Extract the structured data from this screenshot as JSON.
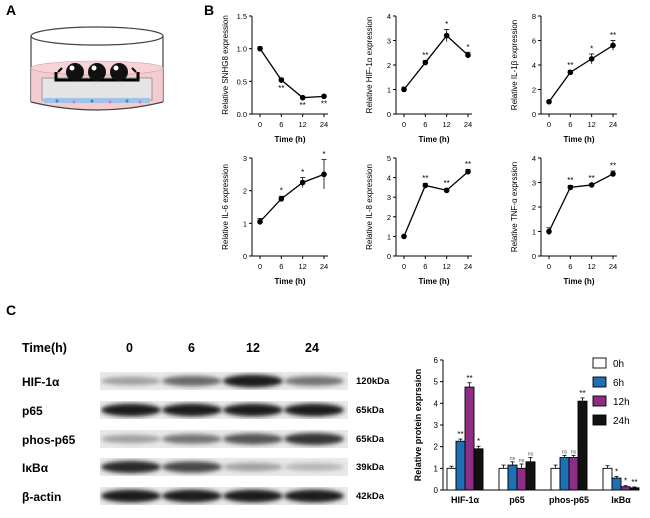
{
  "panels": {
    "a": "A",
    "b": "B",
    "c": "C"
  },
  "line_charts": [
    {
      "id": "snhg8",
      "ylabel": "Relative SNHG8 expression",
      "xlabel": "Time (h)",
      "x": [
        "0",
        "6",
        "12",
        "24"
      ],
      "y": [
        1.0,
        0.52,
        0.25,
        0.27
      ],
      "err": [
        0.03,
        0.03,
        0.02,
        0.02
      ],
      "sig": [
        "",
        "**",
        "**",
        "**"
      ],
      "sig_pos": [
        "",
        "below",
        "below",
        "below"
      ],
      "ylim": [
        0,
        1.5
      ],
      "yticks": [
        "0.0",
        "0.5",
        "1.0",
        "1.5"
      ]
    },
    {
      "id": "hif1a",
      "ylabel": "Relative HIF-1α expression",
      "xlabel": "Time (h)",
      "x": [
        "0",
        "6",
        "12",
        "24"
      ],
      "y": [
        1.0,
        2.1,
        3.2,
        2.4
      ],
      "err": [
        0.1,
        0.08,
        0.25,
        0.12
      ],
      "sig": [
        "",
        "**",
        "*",
        "*"
      ],
      "sig_pos": [
        "",
        "above",
        "above",
        "above"
      ],
      "ylim": [
        0,
        4
      ],
      "yticks": [
        "0",
        "1",
        "2",
        "3",
        "4"
      ]
    },
    {
      "id": "il1b",
      "ylabel": "Relative IL-1β expression",
      "xlabel": "Time (h)",
      "x": [
        "0",
        "6",
        "12",
        "24"
      ],
      "y": [
        1.0,
        3.4,
        4.5,
        5.6
      ],
      "err": [
        0.08,
        0.15,
        0.4,
        0.4
      ],
      "sig": [
        "",
        "**",
        "*",
        "**"
      ],
      "sig_pos": [
        "",
        "above",
        "above",
        "above"
      ],
      "ylim": [
        0,
        8
      ],
      "yticks": [
        "0",
        "2",
        "4",
        "6",
        "8"
      ]
    },
    {
      "id": "il6",
      "ylabel": "Relative IL-6 expression",
      "xlabel": "Time (h)",
      "x": [
        "0",
        "6",
        "12",
        "24"
      ],
      "y": [
        1.05,
        1.75,
        2.25,
        2.5
      ],
      "err": [
        0.1,
        0.08,
        0.15,
        0.45
      ],
      "sig": [
        "",
        "*",
        "*",
        "*"
      ],
      "sig_pos": [
        "",
        "above",
        "above",
        "above"
      ],
      "ylim": [
        0,
        3
      ],
      "yticks": [
        "0",
        "1",
        "2",
        "3"
      ]
    },
    {
      "id": "il8",
      "ylabel": "Relative IL-8 expression",
      "xlabel": "Time (h)",
      "x": [
        "0",
        "6",
        "12",
        "24"
      ],
      "y": [
        1.0,
        3.6,
        3.35,
        4.3
      ],
      "err": [
        0.04,
        0.1,
        0.1,
        0.12
      ],
      "sig": [
        "",
        "**",
        "**",
        "**"
      ],
      "sig_pos": [
        "",
        "above",
        "above",
        "above"
      ],
      "ylim": [
        0,
        5
      ],
      "yticks": [
        "0",
        "1",
        "2",
        "3",
        "4",
        "5"
      ]
    },
    {
      "id": "tnfa",
      "ylabel": "Relative TNF-α exprssion",
      "xlabel": "Time (h)",
      "x": [
        "0",
        "6",
        "12",
        "24"
      ],
      "y": [
        1.0,
        2.8,
        2.9,
        3.35
      ],
      "err": [
        0.15,
        0.08,
        0.06,
        0.12
      ],
      "sig": [
        "",
        "**",
        "**",
        "**"
      ],
      "sig_pos": [
        "",
        "above",
        "above",
        "above"
      ],
      "ylim": [
        0,
        4
      ],
      "yticks": [
        "0",
        "1",
        "2",
        "3",
        "4"
      ]
    }
  ],
  "western_blot": {
    "time_header": "Time(h)",
    "times": [
      "0",
      "6",
      "12",
      "24"
    ],
    "rows": [
      {
        "label": "HIF-1α",
        "kda": "120kDa",
        "intensity": [
          0.35,
          0.6,
          0.95,
          0.55
        ]
      },
      {
        "label": "p65",
        "kda": "65kDa",
        "intensity": [
          0.95,
          0.95,
          0.95,
          0.95
        ]
      },
      {
        "label": "phos-p65",
        "kda": "65kDa",
        "intensity": [
          0.35,
          0.55,
          0.7,
          0.85
        ]
      },
      {
        "label": "IκBα",
        "kda": "39kDa",
        "intensity": [
          0.9,
          0.75,
          0.35,
          0.25
        ]
      },
      {
        "label": "β-actin",
        "kda": "42kDa",
        "intensity": [
          0.95,
          0.95,
          0.95,
          0.95
        ]
      }
    ]
  },
  "chart_data": {
    "type": "bar",
    "ylabel": "Relative protein exprssion",
    "ylim": [
      0,
      6
    ],
    "yticks": [
      "0",
      "1",
      "2",
      "3",
      "4",
      "5",
      "6"
    ],
    "categories": [
      "HIF-1α",
      "p65",
      "phos-p65",
      "IκBα"
    ],
    "legend_position": "right",
    "series": [
      {
        "name": "0h",
        "color": "#ffffff",
        "values": [
          1.0,
          1.0,
          1.0,
          1.0
        ],
        "err": [
          0.1,
          0.15,
          0.15,
          0.12
        ],
        "sig": [
          "",
          "",
          "",
          ""
        ]
      },
      {
        "name": "6h",
        "color": "#1f6fb5",
        "values": [
          2.25,
          1.15,
          1.5,
          0.55
        ],
        "err": [
          0.1,
          0.15,
          0.1,
          0.08
        ],
        "sig": [
          "**",
          "ns",
          "ns",
          "*"
        ]
      },
      {
        "name": "12h",
        "color": "#8e2c86",
        "values": [
          4.75,
          1.0,
          1.5,
          0.15
        ],
        "err": [
          0.2,
          0.2,
          0.1,
          0.05
        ],
        "sig": [
          "**",
          "ns",
          "ns",
          "*"
        ]
      },
      {
        "name": "24h",
        "color": "#111111",
        "values": [
          1.9,
          1.3,
          4.1,
          0.1
        ],
        "err": [
          0.12,
          0.2,
          0.15,
          0.04
        ],
        "sig": [
          "*",
          "ns",
          "**",
          "**"
        ]
      }
    ]
  }
}
